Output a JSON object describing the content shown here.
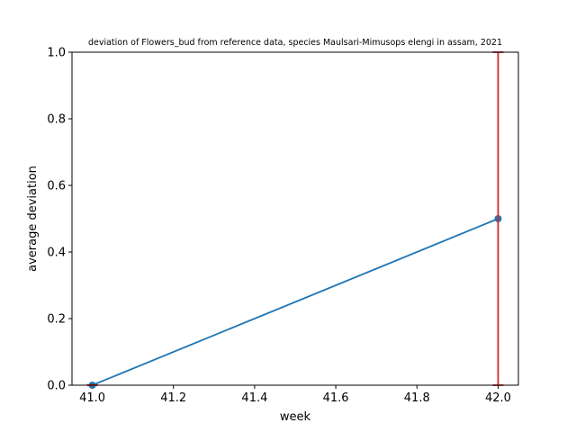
{
  "chart_data": {
    "type": "line",
    "title": "deviation of Flowers_bud from reference data, species Maulsari-Mimusops elengi in assam, 2021",
    "xlabel": "week",
    "ylabel": "average deviation",
    "xlim": [
      40.95,
      42.05
    ],
    "ylim": [
      0.0,
      1.0
    ],
    "x_ticks": [
      41.0,
      41.2,
      41.4,
      41.6,
      41.8,
      42.0
    ],
    "x_tick_labels": [
      "41.0",
      "41.2",
      "41.4",
      "41.6",
      "41.8",
      "42.0"
    ],
    "y_ticks": [
      0.0,
      0.2,
      0.4,
      0.6,
      0.8,
      1.0
    ],
    "y_tick_labels": [
      "0.0",
      "0.2",
      "0.4",
      "0.6",
      "0.8",
      "1.0"
    ],
    "grid": false,
    "series": [
      {
        "x": [
          41.0,
          42.0
        ],
        "y": [
          0.0,
          0.5
        ],
        "color": "#1f77b4",
        "marker": "circle"
      }
    ],
    "error_bars": [
      {
        "x": 41.0,
        "lower": 0.0,
        "upper": 0.0,
        "color": "#d62728"
      },
      {
        "x": 42.0,
        "lower": 0.0,
        "upper": 1.0,
        "color": "#d62728"
      }
    ]
  }
}
